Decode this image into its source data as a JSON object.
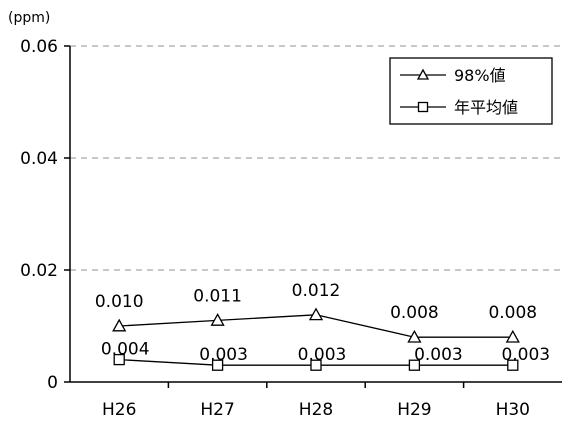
{
  "chart_data": {
    "type": "line",
    "unit_label": "(ppm)",
    "categories": [
      "H26",
      "H27",
      "H28",
      "H29",
      "H30"
    ],
    "ylim": [
      0,
      0.06
    ],
    "yticks": [
      "0",
      "0.02",
      "0.04",
      "0.06"
    ],
    "ytick_values": [
      0,
      0.02,
      0.04,
      0.06
    ],
    "grid": "horizontal-dashed",
    "legend_position": "top-right",
    "series": [
      {
        "name": "98%値",
        "marker": "triangle",
        "values": [
          0.01,
          0.011,
          0.012,
          0.008,
          0.008
        ],
        "labels": [
          "0.010",
          "0.011",
          "0.012",
          "0.008",
          "0.008"
        ]
      },
      {
        "name": "年平均値",
        "marker": "square",
        "values": [
          0.004,
          0.003,
          0.003,
          0.003,
          0.003
        ],
        "labels": [
          "0.004",
          "0.003",
          "0.003",
          "0.003",
          "0.003"
        ]
      }
    ],
    "colors": {
      "line": "#000000",
      "grid": "#a6a6a6",
      "marker_fill": "#ffffff"
    }
  }
}
